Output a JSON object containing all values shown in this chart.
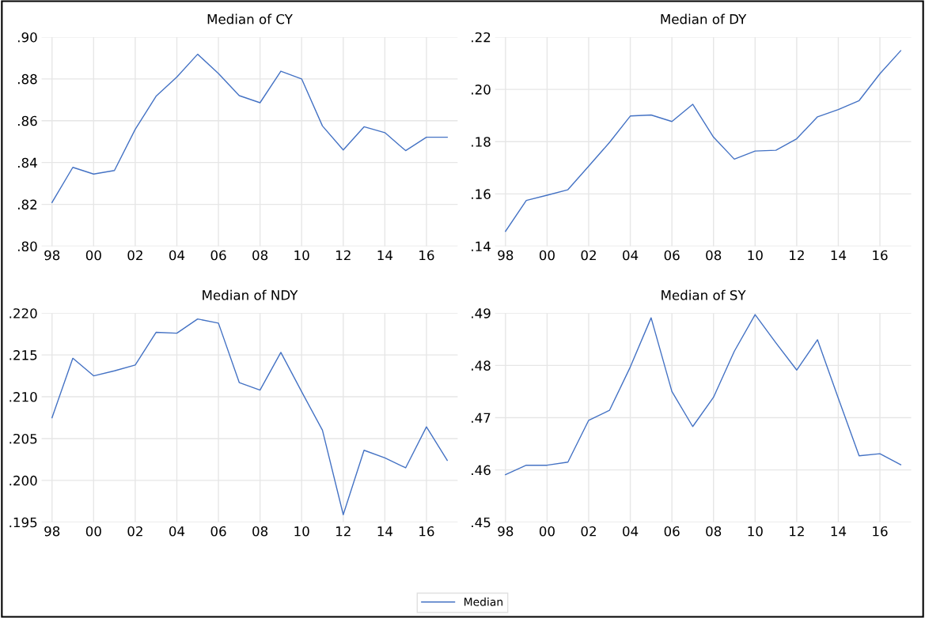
{
  "chart_data": [
    {
      "type": "line",
      "title": "Median of CY",
      "x": [
        1998,
        1999,
        2000,
        2001,
        2002,
        2003,
        2004,
        2005,
        2006,
        2007,
        2008,
        2009,
        2010,
        2011,
        2012,
        2013,
        2014,
        2015,
        2016,
        2017
      ],
      "series": [
        {
          "name": "Median",
          "color": "#4472c4",
          "values": [
            0.8209,
            0.8377,
            0.8345,
            0.8362,
            0.8559,
            0.8717,
            0.8809,
            0.8918,
            0.8826,
            0.872,
            0.8686,
            0.8837,
            0.88,
            0.8575,
            0.846,
            0.8571,
            0.8543,
            0.8457,
            0.8521,
            0.8521
          ]
        }
      ],
      "xlim": [
        1997.5,
        2017.5
      ],
      "xticks": [
        {
          "value": 1998,
          "label": "98"
        },
        {
          "value": 2000,
          "label": "00"
        },
        {
          "value": 2002,
          "label": "02"
        },
        {
          "value": 2004,
          "label": "04"
        },
        {
          "value": 2006,
          "label": "06"
        },
        {
          "value": 2008,
          "label": "08"
        },
        {
          "value": 2010,
          "label": "10"
        },
        {
          "value": 2012,
          "label": "12"
        },
        {
          "value": 2014,
          "label": "14"
        },
        {
          "value": 2016,
          "label": "16"
        }
      ],
      "ylim": [
        0.8,
        0.9
      ],
      "yticks": [
        {
          "value": 0.8,
          "label": ".80"
        },
        {
          "value": 0.82,
          "label": ".82"
        },
        {
          "value": 0.84,
          "label": ".84"
        },
        {
          "value": 0.86,
          "label": ".86"
        },
        {
          "value": 0.88,
          "label": ".88"
        },
        {
          "value": 0.9,
          "label": ".90"
        }
      ],
      "grid": true,
      "legend": "bottom",
      "line_style": "solid"
    },
    {
      "type": "line",
      "title": "Median of DY",
      "x": [
        1998,
        1999,
        2000,
        2001,
        2002,
        2003,
        2004,
        2005,
        2006,
        2007,
        2008,
        2009,
        2010,
        2011,
        2012,
        2013,
        2014,
        2015,
        2016,
        2017
      ],
      "series": [
        {
          "name": "Median",
          "color": "#4472c4",
          "values": [
            0.1457,
            0.1575,
            0.1595,
            0.1616,
            0.1706,
            0.1797,
            0.1898,
            0.1902,
            0.1877,
            0.1943,
            0.1817,
            0.1733,
            0.1764,
            0.1767,
            0.1811,
            0.1895,
            0.1923,
            0.1957,
            0.206,
            0.2148
          ]
        }
      ],
      "xlim": [
        1997.5,
        2017.5
      ],
      "xticks": [
        {
          "value": 1998,
          "label": "98"
        },
        {
          "value": 2000,
          "label": "00"
        },
        {
          "value": 2002,
          "label": "02"
        },
        {
          "value": 2004,
          "label": "04"
        },
        {
          "value": 2006,
          "label": "06"
        },
        {
          "value": 2008,
          "label": "08"
        },
        {
          "value": 2010,
          "label": "10"
        },
        {
          "value": 2012,
          "label": "12"
        },
        {
          "value": 2014,
          "label": "14"
        },
        {
          "value": 2016,
          "label": "16"
        }
      ],
      "ylim": [
        0.14,
        0.22
      ],
      "yticks": [
        {
          "value": 0.14,
          "label": ".14"
        },
        {
          "value": 0.16,
          "label": ".16"
        },
        {
          "value": 0.18,
          "label": ".18"
        },
        {
          "value": 0.2,
          "label": ".20"
        },
        {
          "value": 0.22,
          "label": ".22"
        }
      ],
      "grid": true,
      "legend": "bottom",
      "line_style": "solid"
    },
    {
      "type": "line",
      "title": "Median of NDY",
      "x": [
        1998,
        1999,
        2000,
        2001,
        2002,
        2003,
        2004,
        2005,
        2006,
        2007,
        2008,
        2009,
        2010,
        2011,
        2012,
        2013,
        2014,
        2015,
        2016,
        2017
      ],
      "series": [
        {
          "name": "Median",
          "color": "#4472c4",
          "values": [
            0.2075,
            0.2146,
            0.2125,
            0.2131,
            0.2138,
            0.2177,
            0.2176,
            0.2193,
            0.2188,
            0.2117,
            0.2108,
            0.2153,
            0.2106,
            0.206,
            0.1959,
            0.2036,
            0.2027,
            0.2015,
            0.2064,
            0.2024
          ]
        }
      ],
      "xlim": [
        1997.5,
        2017.5
      ],
      "xticks": [
        {
          "value": 1998,
          "label": "98"
        },
        {
          "value": 2000,
          "label": "00"
        },
        {
          "value": 2002,
          "label": "02"
        },
        {
          "value": 2004,
          "label": "04"
        },
        {
          "value": 2006,
          "label": "06"
        },
        {
          "value": 2008,
          "label": "08"
        },
        {
          "value": 2010,
          "label": "10"
        },
        {
          "value": 2012,
          "label": "12"
        },
        {
          "value": 2014,
          "label": "14"
        },
        {
          "value": 2016,
          "label": "16"
        }
      ],
      "ylim": [
        0.195,
        0.22
      ],
      "yticks": [
        {
          "value": 0.195,
          "label": ".195"
        },
        {
          "value": 0.2,
          "label": ".200"
        },
        {
          "value": 0.205,
          "label": ".205"
        },
        {
          "value": 0.21,
          "label": ".210"
        },
        {
          "value": 0.215,
          "label": ".215"
        },
        {
          "value": 0.22,
          "label": ".220"
        }
      ],
      "grid": true,
      "legend": "bottom",
      "line_style": "solid"
    },
    {
      "type": "line",
      "title": "Median of SY",
      "x": [
        1998,
        1999,
        2000,
        2001,
        2002,
        2003,
        2004,
        2005,
        2006,
        2007,
        2008,
        2009,
        2010,
        2011,
        2012,
        2013,
        2014,
        2015,
        2016,
        2017
      ],
      "series": [
        {
          "name": "Median",
          "color": "#4472c4",
          "values": [
            0.4591,
            0.4609,
            0.4609,
            0.4615,
            0.4695,
            0.4714,
            0.4797,
            0.4891,
            0.475,
            0.4683,
            0.4739,
            0.4827,
            0.4897,
            0.4843,
            0.4791,
            0.4849,
            0.4737,
            0.4627,
            0.4631,
            0.461
          ]
        }
      ],
      "xlim": [
        1997.5,
        2017.5
      ],
      "xticks": [
        {
          "value": 1998,
          "label": "98"
        },
        {
          "value": 2000,
          "label": "00"
        },
        {
          "value": 2002,
          "label": "02"
        },
        {
          "value": 2004,
          "label": "04"
        },
        {
          "value": 2006,
          "label": "06"
        },
        {
          "value": 2008,
          "label": "08"
        },
        {
          "value": 2010,
          "label": "10"
        },
        {
          "value": 2012,
          "label": "12"
        },
        {
          "value": 2014,
          "label": "14"
        },
        {
          "value": 2016,
          "label": "16"
        }
      ],
      "ylim": [
        0.45,
        0.49
      ],
      "yticks": [
        {
          "value": 0.45,
          "label": ".45"
        },
        {
          "value": 0.46,
          "label": ".46"
        },
        {
          "value": 0.47,
          "label": ".47"
        },
        {
          "value": 0.48,
          "label": ".48"
        },
        {
          "value": 0.49,
          "label": ".49"
        }
      ],
      "grid": true,
      "legend": "bottom",
      "line_style": "solid"
    }
  ]
}
